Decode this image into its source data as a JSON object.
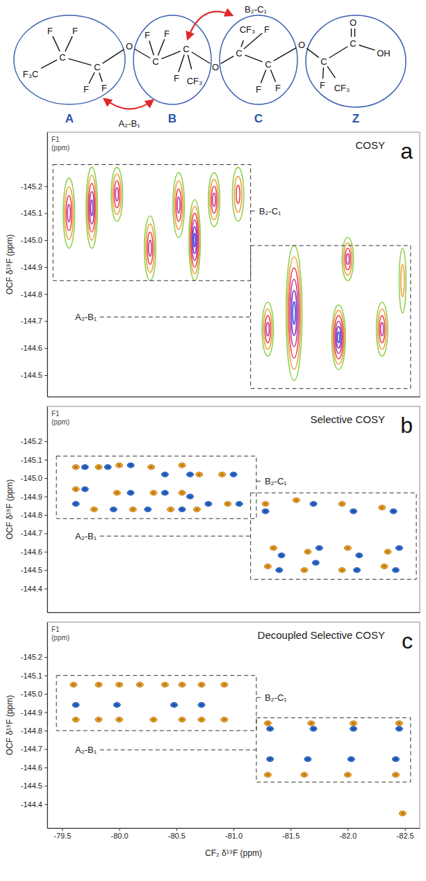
{
  "diagram": {
    "atoms": [
      "F₃C",
      "C",
      "F",
      "F",
      "C",
      "F",
      "F",
      "O",
      "C",
      "F",
      "F",
      "C",
      "F",
      "CF₃",
      "O",
      "C",
      "CF₃",
      "F",
      "C",
      "F",
      "F",
      "O",
      "C",
      "F",
      "CF₃",
      "C",
      "O",
      "OH"
    ],
    "groups": [
      "A",
      "B",
      "C",
      "Z"
    ],
    "links": [
      "A₂-B₁",
      "B₂-C₁"
    ]
  },
  "chart_data": [
    {
      "type": "contour",
      "label": "a",
      "title": "COSY",
      "ylabel": "OCF δ¹⁹F (ppm)",
      "corner_label": [
        "F1",
        "(ppm)"
      ],
      "xlim": [
        -79.37,
        -82.63
      ],
      "ylim": [
        -145.4,
        -144.42
      ],
      "yticks": [
        -145.2,
        -145.1,
        {
          "value": -145,
          "label": "-145.0"
        },
        -144.9,
        -144.8,
        -144.7,
        -144.6,
        -144.5
      ],
      "tick_labels": "y",
      "series": [
        {
          "x": [
            -79.56,
            -79.76,
            -79.98,
            -80.27,
            -80.52,
            -80.66,
            -80.83,
            -81.04,
            -81.3,
            -81.53,
            -81.92,
            -82.0,
            -82.3,
            -82.48
          ],
          "values": [
            -145.1,
            -145.12,
            -145.17,
            -144.97,
            -145.13,
            -145.0,
            -145.15,
            -145.17,
            -144.67,
            -144.73,
            -144.64,
            -144.93,
            -144.67,
            -144.85
          ],
          "x_width": [
            0.05,
            0.05,
            0.05,
            0.05,
            0.05,
            0.05,
            0.05,
            0.05,
            0.05,
            0.07,
            0.06,
            0.05,
            0.05,
            0.03
          ],
          "y_width": [
            0.13,
            0.15,
            0.1,
            0.12,
            0.12,
            0.15,
            0.1,
            0.1,
            0.1,
            0.25,
            0.12,
            0.08,
            0.1,
            0.12
          ],
          "levels": [
            4,
            5,
            4,
            4,
            4,
            6,
            4,
            3,
            4,
            6,
            6,
            4,
            4,
            2
          ]
        }
      ],
      "annotations": [
        {
          "text": "B₂-C₁",
          "x": [
            -79.42,
            -81.15
          ],
          "y": [
            -145.28,
            -144.85
          ]
        },
        {
          "text": "A₂-B₁",
          "x": [
            -81.15,
            -82.55
          ],
          "y": [
            -144.98,
            -144.45
          ]
        }
      ]
    },
    {
      "type": "scatter",
      "marker": "dot",
      "label": "b",
      "title": "Selective COSY",
      "ylabel": "OCF δ¹⁹F (ppm)",
      "corner_label": [
        "F1",
        "(ppm)"
      ],
      "xlim": [
        -79.37,
        -82.63
      ],
      "ylim": [
        -145.39,
        -144.27
      ],
      "yticks": [
        -145.2,
        -145.1,
        {
          "value": -145,
          "label": "-145.0"
        },
        -144.9,
        -144.8,
        -144.7,
        -144.6,
        -144.5,
        -144.4
      ],
      "tick_labels": "y",
      "series": [
        {
          "color": "#f0a020",
          "x": [
            -79.62,
            -79.82,
            -80.0,
            -80.28,
            -80.55,
            -80.7,
            -80.9,
            -79.62,
            -79.98,
            -80.3,
            -80.55,
            -80.95,
            -79.78,
            -80.12,
            -80.45,
            -80.68,
            -81.28,
            -81.55,
            -81.95,
            -82.3,
            -81.35,
            -81.65,
            -82.0,
            -82.35,
            -81.3,
            -81.62,
            -81.95,
            -82.32
          ],
          "values": [
            -145.06,
            -145.06,
            -145.07,
            -145.06,
            -145.07,
            -145.02,
            -145.02,
            -144.94,
            -144.92,
            -144.92,
            -144.92,
            -144.86,
            -144.83,
            -144.83,
            -144.83,
            -144.83,
            -144.86,
            -144.88,
            -144.86,
            -144.84,
            -144.62,
            -144.6,
            -144.62,
            -144.6,
            -144.52,
            -144.5,
            -144.5,
            -144.52
          ]
        },
        {
          "color": "#2b6cd8",
          "x": [
            -79.7,
            -79.9,
            -80.1,
            -80.4,
            -80.62,
            -81.0,
            -79.7,
            -80.1,
            -80.4,
            -80.62,
            -81.05,
            -79.62,
            -79.95,
            -80.25,
            -80.55,
            -80.78,
            -81.28,
            -81.7,
            -82.05,
            -82.4,
            -81.42,
            -81.75,
            -82.1,
            -82.45,
            -81.4,
            -81.72,
            -82.08,
            -82.42
          ],
          "values": [
            -145.06,
            -145.06,
            -145.07,
            -145.02,
            -145.02,
            -145.02,
            -144.94,
            -144.92,
            -144.92,
            -144.9,
            -144.86,
            -144.86,
            -144.83,
            -144.83,
            -144.83,
            -144.86,
            -144.82,
            -144.86,
            -144.82,
            -144.82,
            -144.58,
            -144.62,
            -144.58,
            -144.62,
            -144.5,
            -144.54,
            -144.5,
            -144.5
          ]
        }
      ],
      "annotations": [
        {
          "text": "B₂-C₁",
          "x": [
            -79.45,
            -81.2
          ],
          "y": [
            -145.12,
            -144.78
          ]
        },
        {
          "text": "A₂-B₁",
          "x": [
            -81.15,
            -82.6
          ],
          "y": [
            -144.92,
            -144.45
          ]
        }
      ]
    },
    {
      "type": "scatter",
      "marker": "dot",
      "label": "c",
      "title": "Decoupled Selective COSY",
      "ylabel": "OCF δ¹⁹F (ppm)",
      "xlabel": "CF₂ δ¹⁹F (ppm)",
      "corner_label": [
        "F1",
        "(ppm)"
      ],
      "xlim": [
        -79.37,
        -82.63
      ],
      "ylim": [
        -145.39,
        -144.27
      ],
      "xticks": [
        -79.5,
        {
          "value": -80,
          "label": "-80.0"
        },
        -80.5,
        {
          "value": -81,
          "label": "-81.0"
        },
        -81.5,
        {
          "value": -82,
          "label": "-82.0"
        },
        -82.5
      ],
      "yticks": [
        -145.2,
        -145.1,
        {
          "value": -145,
          "label": "-145.0"
        },
        -144.9,
        -144.8,
        -144.7,
        -144.6,
        -144.5,
        -144.4
      ],
      "series": [
        {
          "color": "#f0a020",
          "x": [
            -79.6,
            -79.82,
            -80.0,
            -80.18,
            -80.4,
            -80.55,
            -80.72,
            -80.92,
            -79.62,
            -79.82,
            -80.0,
            -80.3,
            -80.55,
            -80.72,
            -80.92,
            -81.3,
            -81.68,
            -82.05,
            -82.45,
            -81.3,
            -81.62,
            -82.0,
            -82.42,
            -82.48
          ],
          "values": [
            -145.05,
            -145.05,
            -145.05,
            -145.05,
            -145.05,
            -145.05,
            -145.05,
            -145.05,
            -144.86,
            -144.86,
            -144.86,
            -144.86,
            -144.86,
            -144.86,
            -144.86,
            -144.84,
            -144.84,
            -144.84,
            -144.84,
            -144.56,
            -144.56,
            -144.56,
            -144.56,
            -144.35
          ]
        },
        {
          "color": "#2b6cd8",
          "x": [
            -79.62,
            -79.98,
            -80.48,
            -80.72,
            -81.32,
            -81.7,
            -82.05,
            -82.45,
            -81.32,
            -81.65,
            -82.03,
            -82.42
          ],
          "values": [
            -144.94,
            -144.94,
            -144.94,
            -144.94,
            -144.81,
            -144.81,
            -144.81,
            -144.81,
            -144.645,
            -144.645,
            -144.645,
            -144.645
          ]
        }
      ],
      "annotations": [
        {
          "text": "B₂-C₁",
          "x": [
            -79.45,
            -81.2
          ],
          "y": [
            -145.1,
            -144.8
          ]
        },
        {
          "text": "A₂-B₁",
          "x": [
            -81.2,
            -82.55
          ],
          "y": [
            -144.87,
            -144.52
          ]
        }
      ]
    }
  ]
}
